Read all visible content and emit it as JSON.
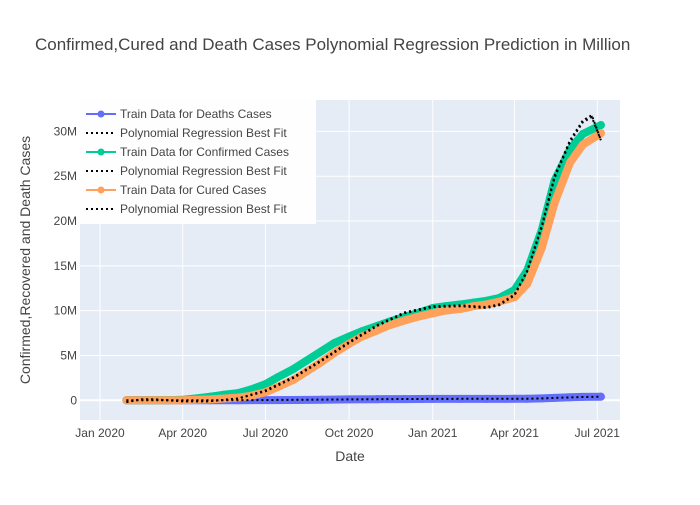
{
  "chart_data": {
    "type": "line",
    "title": "Confirmed,Cured and Death Cases Polynomial Regression Prediction in Million",
    "xlabel": "Date",
    "ylabel": "Confirmed,Recovered and Death Cases",
    "x_ticks": [
      "Jan 2020",
      "Apr 2020",
      "Jul 2020",
      "Oct 2020",
      "Jan 2021",
      "Apr 2021",
      "Jul 2021"
    ],
    "x_tick_dates": [
      "2020-01-01",
      "2020-04-01",
      "2020-07-01",
      "2020-10-01",
      "2021-01-01",
      "2021-04-01",
      "2021-07-01"
    ],
    "xlim": [
      "2019-12-10",
      "2021-07-26"
    ],
    "y_ticks": [
      "0",
      "5M",
      "10M",
      "15M",
      "20M",
      "25M",
      "30M"
    ],
    "y_tick_values": [
      0,
      5000000,
      10000000,
      15000000,
      20000000,
      25000000,
      30000000
    ],
    "ylim": [
      -2200000,
      33500000
    ],
    "grid": true,
    "legend_position": "top-left",
    "plot_background": "#E5ECF6",
    "series": [
      {
        "name": "Train Data for Deaths Cases",
        "kind": "markers+lines",
        "color": "#636EFA",
        "x": [
          "2020-01-30",
          "2020-04-01",
          "2020-05-01",
          "2020-06-01",
          "2020-07-01",
          "2020-08-01",
          "2020-09-01",
          "2020-10-01",
          "2020-11-01",
          "2020-12-01",
          "2021-01-01",
          "2021-02-01",
          "2021-03-01",
          "2021-04-01",
          "2021-04-15",
          "2021-05-01",
          "2021-05-15",
          "2021-06-01",
          "2021-06-15",
          "2021-07-05"
        ],
        "y": [
          0,
          50,
          1000,
          5000,
          17000,
          36000,
          65000,
          98000,
          122000,
          137000,
          149000,
          155000,
          157000,
          165000,
          175000,
          210000,
          265000,
          330000,
          380000,
          402000
        ]
      },
      {
        "name": "Polynomial Regression Best Fit",
        "kind": "dotted",
        "color": "#000000",
        "x": [
          "2020-01-30",
          "2020-02-01",
          "2020-03-01",
          "2020-04-01",
          "2020-05-01",
          "2020-06-01",
          "2020-07-01",
          "2020-08-01",
          "2020-09-01",
          "2020-10-01",
          "2020-11-01",
          "2020-12-01",
          "2021-01-01",
          "2021-02-01",
          "2021-03-01",
          "2021-04-01",
          "2021-04-15",
          "2021-05-01",
          "2021-05-15",
          "2021-06-01",
          "2021-06-15",
          "2021-07-05"
        ],
        "y": [
          0,
          0,
          0,
          0,
          0,
          10000,
          30000,
          50000,
          80000,
          100000,
          120000,
          140000,
          150000,
          160000,
          160000,
          170000,
          180000,
          210000,
          260000,
          320000,
          370000,
          400000
        ]
      },
      {
        "name": "Train Data for Confirmed Cases",
        "kind": "markers+lines",
        "color": "#00CC96",
        "x": [
          "2020-01-30",
          "2020-02-15",
          "2020-03-01",
          "2020-03-15",
          "2020-04-01",
          "2020-04-15",
          "2020-05-01",
          "2020-05-15",
          "2020-06-01",
          "2020-06-15",
          "2020-07-01",
          "2020-07-15",
          "2020-08-01",
          "2020-08-15",
          "2020-09-01",
          "2020-09-15",
          "2020-10-01",
          "2020-10-15",
          "2020-11-01",
          "2020-11-15",
          "2020-12-01",
          "2020-12-15",
          "2021-01-01",
          "2021-01-15",
          "2021-02-01",
          "2021-02-15",
          "2021-03-01",
          "2021-03-15",
          "2021-04-01",
          "2021-04-15",
          "2021-05-01",
          "2021-05-15",
          "2021-06-01",
          "2021-06-15",
          "2021-07-05"
        ],
        "y": [
          0,
          0,
          0,
          10000,
          50000,
          200000,
          400000,
          600000,
          800000,
          1200000,
          1800000,
          2600000,
          3500000,
          4400000,
          5500000,
          6400000,
          7100000,
          7700000,
          8300000,
          8800000,
          9300000,
          9700000,
          10300000,
          10500000,
          10700000,
          10900000,
          11100000,
          11400000,
          12300000,
          14500000,
          19000000,
          24500000,
          28000000,
          29700000,
          30700000
        ]
      },
      {
        "name": "Polynomial Regression Best Fit",
        "kind": "dotted",
        "color": "#000000",
        "x": [
          "2020-01-30",
          "2020-02-15",
          "2020-03-01",
          "2020-04-01",
          "2020-05-01",
          "2020-06-01",
          "2020-07-01",
          "2020-08-01",
          "2020-09-01",
          "2020-10-01",
          "2020-11-01",
          "2020-12-01",
          "2021-01-01",
          "2021-02-01",
          "2021-03-01",
          "2021-03-15",
          "2021-04-01",
          "2021-04-15",
          "2021-05-01",
          "2021-05-15",
          "2021-06-01",
          "2021-06-15",
          "2021-06-25",
          "2021-07-05"
        ],
        "y": [
          -200000,
          100000,
          100000,
          -100000,
          -100000,
          200000,
          1100000,
          2600000,
          4500000,
          6500000,
          8400000,
          9800000,
          10500000,
          10600000,
          10400000,
          10700000,
          11800000,
          14500000,
          19500000,
          25000000,
          29000000,
          31200000,
          31800000,
          29000000
        ]
      },
      {
        "name": "Train Data for Cured Cases",
        "kind": "markers+lines",
        "color": "#FFA15A",
        "x": [
          "2020-01-30",
          "2020-02-15",
          "2020-03-01",
          "2020-04-01",
          "2020-05-01",
          "2020-06-01",
          "2020-06-15",
          "2020-07-01",
          "2020-07-15",
          "2020-08-01",
          "2020-08-15",
          "2020-09-01",
          "2020-09-15",
          "2020-10-01",
          "2020-10-15",
          "2020-11-01",
          "2020-11-15",
          "2020-12-01",
          "2020-12-15",
          "2021-01-01",
          "2021-01-15",
          "2021-02-01",
          "2021-02-15",
          "2021-03-01",
          "2021-03-15",
          "2021-04-01",
          "2021-04-15",
          "2021-05-01",
          "2021-05-15",
          "2021-06-01",
          "2021-06-15",
          "2021-07-05"
        ],
        "y": [
          0,
          0,
          0,
          10000,
          100000,
          300000,
          500000,
          900000,
          1500000,
          2300000,
          3200000,
          4300000,
          5300000,
          6300000,
          7100000,
          7800000,
          8400000,
          8900000,
          9300000,
          9700000,
          10000000,
          10200000,
          10500000,
          10700000,
          11000000,
          11500000,
          13000000,
          17000000,
          22000000,
          26500000,
          28500000,
          29800000
        ]
      },
      {
        "name": "Polynomial Regression Best Fit",
        "kind": "dotted",
        "color": "#000000",
        "x": [
          "2020-01-30",
          "2020-02-15",
          "2020-03-01",
          "2020-04-01",
          "2020-05-01",
          "2020-06-01",
          "2020-07-01",
          "2020-08-01",
          "2020-09-01",
          "2020-10-01",
          "2020-11-01",
          "2020-12-01",
          "2021-01-01",
          "2021-02-01",
          "2021-03-01",
          "2021-03-15",
          "2021-04-01",
          "2021-04-15",
          "2021-05-01",
          "2021-05-15",
          "2021-06-01",
          "2021-06-15",
          "2021-06-25",
          "2021-07-05"
        ],
        "y": [
          -200000,
          100000,
          100000,
          -100000,
          -100000,
          200000,
          1000000,
          2500000,
          4400000,
          6400000,
          8300000,
          9700000,
          10400000,
          10500000,
          10300000,
          10600000,
          11700000,
          14400000,
          19300000,
          24800000,
          28800000,
          31000000,
          31600000,
          29000000
        ]
      }
    ]
  }
}
